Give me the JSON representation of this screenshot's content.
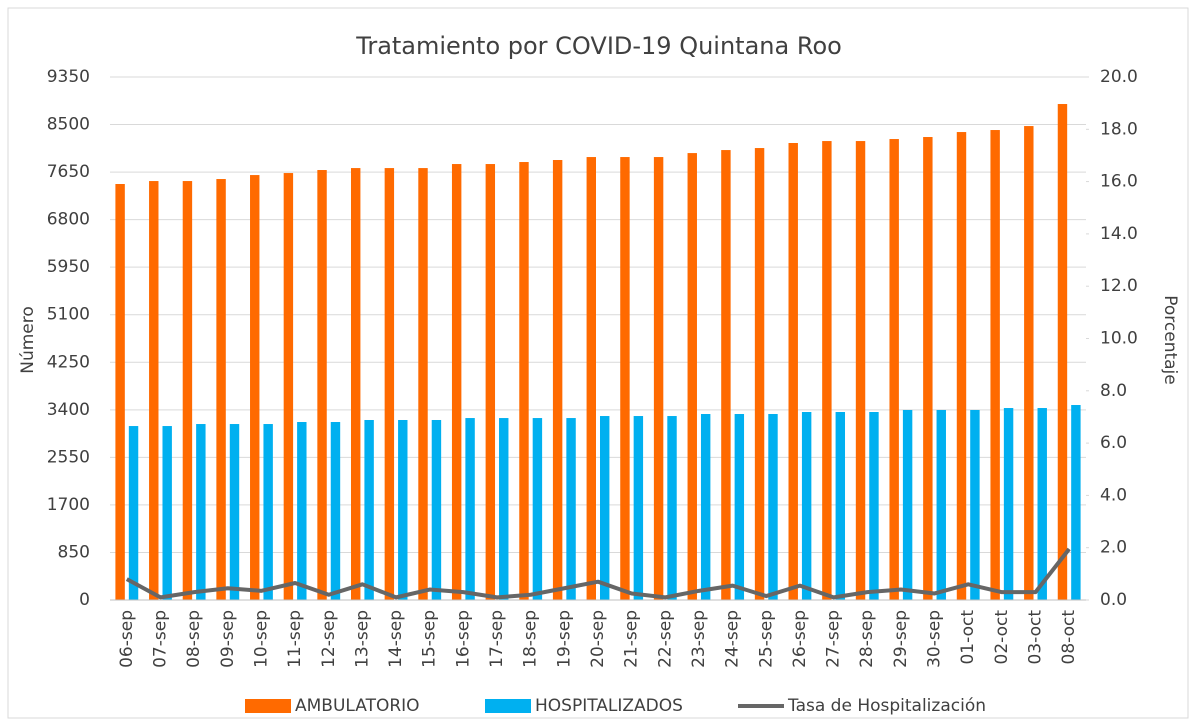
{
  "chart_data": {
    "type": "bar_line",
    "title": "Tratamiento por COVID-19 Quintana Roo",
    "y_label": "Número",
    "y2_label": "Porcentaje",
    "categories": [
      "06-sep",
      "07-sep",
      "08-sep",
      "09-sep",
      "10-sep",
      "11-sep",
      "12-sep",
      "13-sep",
      "14-sep",
      "15-sep",
      "16-sep",
      "17-sep",
      "18-sep",
      "19-sep",
      "20-sep",
      "21-sep",
      "22-sep",
      "23-sep",
      "24-sep",
      "25-sep",
      "26-sep",
      "27-sep",
      "28-sep",
      "29-sep",
      "30-sep",
      "01-oct",
      "02-oct",
      "03-oct",
      "08-oct"
    ],
    "series": [
      {
        "name": "AMBULATORIO",
        "type": "bar",
        "color": "#ff6a00",
        "values": [
          7437,
          7490,
          7490,
          7526,
          7597,
          7633,
          7687,
          7722,
          7722,
          7722,
          7794,
          7794,
          7830,
          7866,
          7919,
          7919,
          7919,
          7990,
          8044,
          8080,
          8170,
          8205,
          8205,
          8241,
          8277,
          8366,
          8402,
          8473,
          8867
        ]
      },
      {
        "name": "HOSPITALIZADOS",
        "type": "bar",
        "color": "#00b0f0",
        "values": [
          3110,
          3110,
          3146,
          3146,
          3146,
          3182,
          3182,
          3218,
          3218,
          3218,
          3253,
          3253,
          3253,
          3253,
          3289,
          3289,
          3289,
          3325,
          3325,
          3325,
          3361,
          3361,
          3361,
          3397,
          3397,
          3397,
          3432,
          3432,
          3486
        ]
      },
      {
        "name": "Tasa de Hospitalización",
        "type": "line",
        "axis": "y2",
        "color": "#666666",
        "values": [
          0.8,
          0.1,
          0.3,
          0.45,
          0.35,
          0.65,
          0.2,
          0.6,
          0.1,
          0.4,
          0.3,
          0.1,
          0.2,
          0.45,
          0.7,
          0.25,
          0.1,
          0.35,
          0.55,
          0.15,
          0.55,
          0.1,
          0.3,
          0.4,
          0.25,
          0.6,
          0.3,
          0.3,
          1.95
        ]
      }
    ],
    "ylim": [
      0,
      9350
    ],
    "yticks": [
      0,
      850,
      1700,
      2550,
      3400,
      4250,
      5100,
      5950,
      6800,
      7650,
      8500,
      9350
    ],
    "y2lim": [
      0,
      20
    ],
    "y2ticks": [
      {
        "value": 0,
        "label": "0.0"
      },
      {
        "value": 2,
        "label": "2.0"
      },
      {
        "value": 4,
        "label": "4.0"
      },
      {
        "value": 6,
        "label": "6.0"
      },
      {
        "value": 8,
        "label": "8.0"
      },
      {
        "value": 10,
        "label": "10.0"
      },
      {
        "value": 12,
        "label": "12.0"
      },
      {
        "value": 14,
        "label": "14.0"
      },
      {
        "value": 16,
        "label": "16.0"
      },
      {
        "value": 18,
        "label": "18.0"
      },
      {
        "value": 20,
        "label": "20.0"
      }
    ],
    "grid": true,
    "legend": "bottom"
  }
}
